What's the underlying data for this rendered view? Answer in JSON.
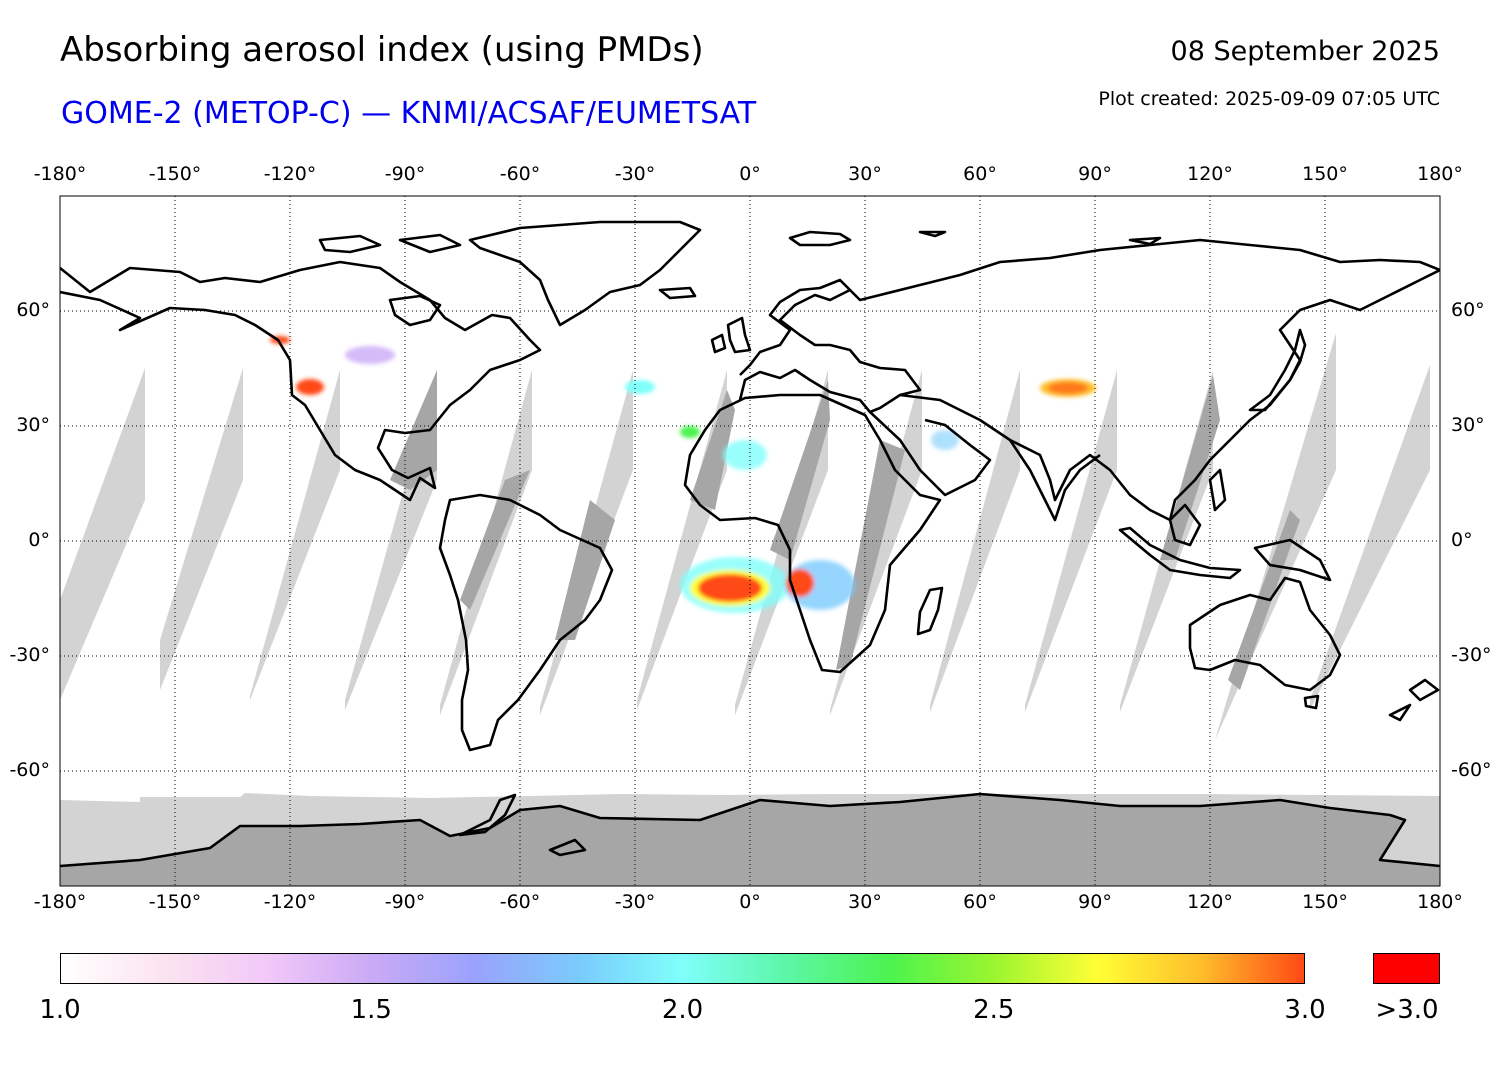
{
  "header": {
    "title": "Absorbing aerosol index (using PMDs)",
    "subtitle": "GOME-2 (METOP-C) — KNMI/ACSAF/EUMETSAT",
    "date": "08 September 2025",
    "created": "Plot created: 2025-09-09 07:05 UTC"
  },
  "colors": {
    "subtitle": "#0000ee",
    "nodata_light": "#d3d3d3",
    "nodata_dark": "#a6a6a6",
    "coast": "#000000",
    "over_range": "#ff0000"
  },
  "map": {
    "projection": "equirectangular",
    "lon_range": [
      -180,
      180
    ],
    "lat_range": [
      -90,
      90
    ],
    "lon_ticks": [
      "-180°",
      "-150°",
      "-120°",
      "-90°",
      "-60°",
      "-30°",
      "0°",
      "30°",
      "60°",
      "90°",
      "120°",
      "150°",
      "180°"
    ],
    "lon_tick_values": [
      -180,
      -150,
      -120,
      -90,
      -60,
      -30,
      0,
      30,
      60,
      90,
      120,
      150,
      180
    ],
    "lat_ticks": [
      "60°",
      "30°",
      "0°",
      "-30°",
      "-60°"
    ],
    "lat_tick_values": [
      60,
      30,
      0,
      -30,
      -60
    ],
    "grid": "dotted",
    "aerosol_plumes": [
      {
        "region": "Southern Africa / South Atlantic",
        "lon": -5,
        "lat": -10,
        "max_value": ">3.0"
      },
      {
        "region": "Central Africa",
        "lon": 12,
        "lat": -12,
        "max_value": ">3.0"
      },
      {
        "region": "Western USA",
        "lon": -112,
        "lat": 40,
        "max_value": ">3.0"
      },
      {
        "region": "Western Canada",
        "lon": -122,
        "lat": 53,
        "max_value": ">3.0"
      },
      {
        "region": "Central Asia",
        "lon": 85,
        "lat": 39,
        "max_value": "2.5"
      },
      {
        "region": "Sahara / West Africa",
        "lon": 0,
        "lat": 22,
        "max_value": "2.2"
      },
      {
        "region": "Azores",
        "lon": -28,
        "lat": 38,
        "max_value": "2.0"
      },
      {
        "region": "Canary Islands",
        "lon": -15,
        "lat": 28,
        "max_value": "2.3"
      },
      {
        "region": "Central North America",
        "lon": -100,
        "lat": 48,
        "max_value": "1.7"
      }
    ]
  },
  "colorbar": {
    "tick_labels": [
      "1.0",
      "1.5",
      "2.0",
      "2.5",
      "3.0"
    ],
    "tick_values": [
      1.0,
      1.5,
      2.0,
      2.5,
      3.0
    ],
    "over_label": ">3.0",
    "range": [
      1.0,
      3.0
    ],
    "stops": [
      "#ffffff",
      "#fbe3ef",
      "#f1c8f8",
      "#caaaf6",
      "#9aa2fc",
      "#7acbfd",
      "#7ffffb",
      "#5cf7a8",
      "#4cf34f",
      "#9af530",
      "#ffff35",
      "#ffbe2c",
      "#ff4a15"
    ]
  }
}
